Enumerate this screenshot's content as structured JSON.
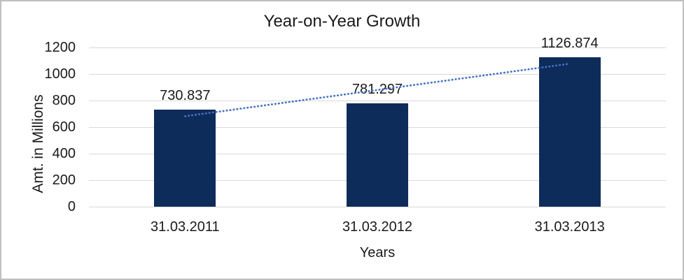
{
  "chart_data": {
    "type": "bar",
    "title": "Year-on-Year Growth",
    "xlabel": "Years",
    "ylabel": "Amt. in Millions",
    "categories": [
      "31.03.2011",
      "31.03.2012",
      "31.03.2013"
    ],
    "values": [
      730.837,
      781.297,
      1126.874
    ],
    "data_labels": [
      "730.837",
      "781.297",
      "1126.874"
    ],
    "ylim": [
      0,
      1200
    ],
    "yticks": [
      0,
      200,
      400,
      600,
      800,
      1000,
      1200
    ],
    "grid": true,
    "legend": "none",
    "trendline": {
      "type": "linear",
      "style": "dotted"
    },
    "colors": {
      "bar": "#0E2C59",
      "trendline": "#4472C4",
      "gridline": "#D9D9D9",
      "text": "#1a1a1a",
      "frame_border": "#BFBFBF",
      "background": "#FFFFFF"
    }
  }
}
